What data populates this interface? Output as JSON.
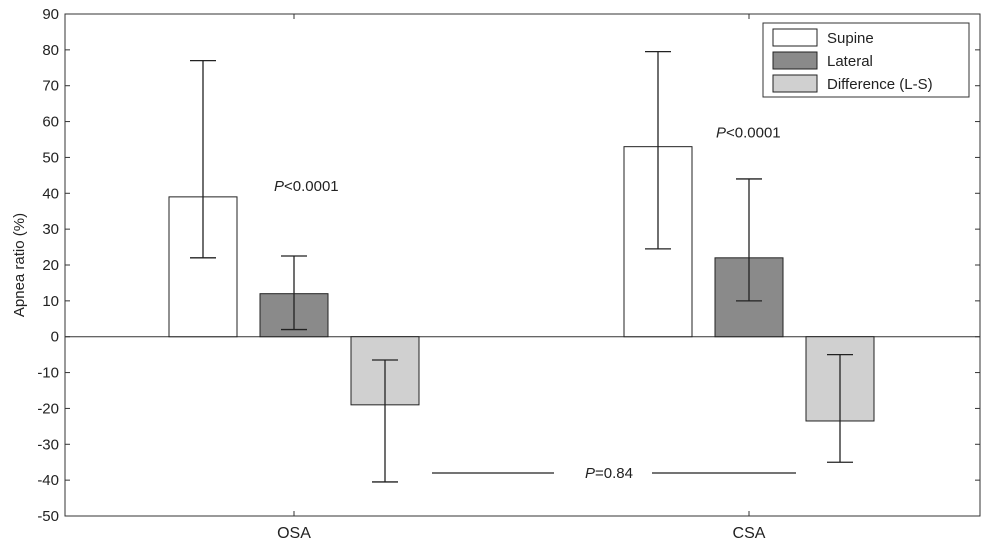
{
  "chart_data": {
    "type": "bar",
    "categories": [
      "OSA",
      "CSA"
    ],
    "series": [
      {
        "name": "Supine",
        "color": "#ffffff",
        "values": [
          39,
          53
        ],
        "err_low": [
          22,
          24.5
        ],
        "err_high": [
          77,
          79.5
        ]
      },
      {
        "name": "Lateral",
        "color": "#8a8a8a",
        "values": [
          12,
          22
        ],
        "err_low": [
          2,
          10
        ],
        "err_high": [
          22.5,
          44
        ]
      },
      {
        "name": "Difference (L-S)",
        "color": "#d0d0d0",
        "values": [
          -19,
          -23.5
        ],
        "err_low": [
          -40.5,
          -35
        ],
        "err_high": [
          -6.5,
          -5
        ]
      }
    ],
    "ylabel": "Apnea ratio (%)",
    "ylim": [
      -50,
      90
    ],
    "yticks": [
      "-50",
      "-40",
      "-30",
      "-20",
      "-10",
      "0",
      "10",
      "20",
      "30",
      "40",
      "50",
      "60",
      "70",
      "80",
      "90"
    ],
    "grid": false,
    "legend": "top-right",
    "annotations": [
      {
        "italic": "P",
        "text": "<0.0001",
        "category": "OSA"
      },
      {
        "italic": "P",
        "text": "<0.0001",
        "category": "CSA"
      },
      {
        "italic": "P",
        "text": "=0.84",
        "category": "between"
      }
    ]
  }
}
